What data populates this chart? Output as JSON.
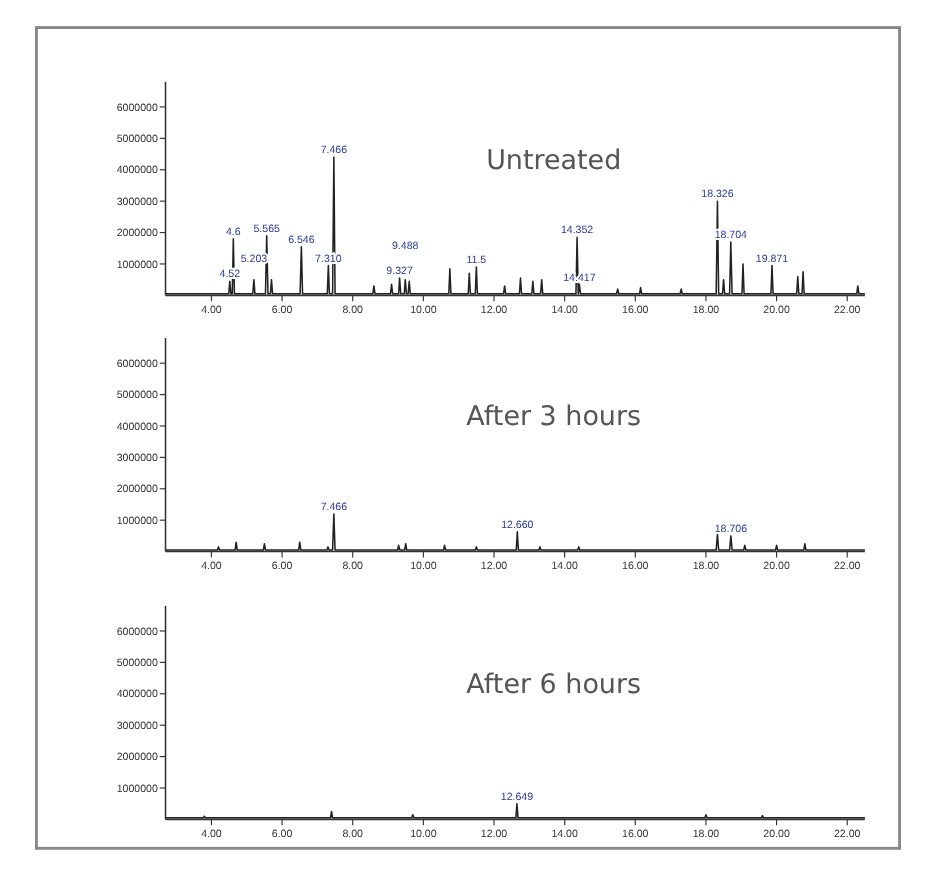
{
  "chart_data": [
    {
      "type": "line",
      "title": "Untreated",
      "xlim": [
        2.7,
        22.5
      ],
      "ylim": [
        0,
        6800000
      ],
      "xticks": [
        {
          "value": 4,
          "label": "4.00"
        },
        {
          "value": 6,
          "label": "6.00"
        },
        {
          "value": 8,
          "label": "8.00"
        },
        {
          "value": 10,
          "label": "10.00"
        },
        {
          "value": 12,
          "label": "12.00"
        },
        {
          "value": 14,
          "label": "14.00"
        },
        {
          "value": 16,
          "label": "16.00"
        },
        {
          "value": 18,
          "label": "18.00"
        },
        {
          "value": 20,
          "label": "20.00"
        },
        {
          "value": 22,
          "label": "22.00"
        }
      ],
      "yticks": [
        1000000,
        2000000,
        3000000,
        4000000,
        5000000,
        6000000
      ],
      "series": [
        {
          "color": "#222222",
          "x": [
            2.7,
            4.49,
            4.52,
            4.55,
            4.59,
            4.62,
            4.65,
            5.17,
            5.203,
            5.23,
            5.53,
            5.565,
            5.6,
            5.67,
            5.7,
            5.73,
            6.51,
            6.546,
            6.58,
            7.28,
            7.31,
            7.34,
            7.43,
            7.466,
            7.5,
            8.57,
            8.6,
            8.63,
            9.07,
            9.1,
            9.13,
            9.3,
            9.327,
            9.36,
            9.46,
            9.488,
            9.52,
            9.57,
            9.6,
            9.63,
            10.72,
            10.75,
            10.78,
            11.27,
            11.3,
            11.33,
            11.47,
            11.5,
            11.53,
            12.27,
            12.3,
            12.33,
            12.72,
            12.75,
            12.78,
            13.07,
            13.1,
            13.13,
            13.32,
            13.35,
            13.38,
            14.32,
            14.352,
            14.385,
            14.417,
            14.45,
            15.47,
            15.5,
            15.53,
            16.12,
            16.15,
            16.18,
            17.27,
            17.3,
            17.33,
            18.29,
            18.326,
            18.36,
            18.47,
            18.5,
            18.53,
            18.67,
            18.704,
            18.74,
            19.02,
            19.05,
            19.08,
            19.84,
            19.871,
            19.9,
            20.57,
            20.6,
            20.63,
            20.72,
            20.75,
            20.78,
            22.27,
            22.3,
            22.33,
            22.5
          ],
          "values": [
            50000,
            50000,
            450000,
            50000,
            50000,
            1800000,
            50000,
            50000,
            500000,
            50000,
            50000,
            1900000,
            50000,
            50000,
            500000,
            50000,
            50000,
            1550000,
            50000,
            50000,
            950000,
            50000,
            50000,
            4400000,
            50000,
            50000,
            300000,
            50000,
            50000,
            350000,
            50000,
            50000,
            550000,
            50000,
            50000,
            500000,
            50000,
            50000,
            450000,
            50000,
            50000,
            850000,
            50000,
            50000,
            700000,
            50000,
            50000,
            900000,
            50000,
            50000,
            300000,
            50000,
            50000,
            550000,
            50000,
            50000,
            450000,
            50000,
            50000,
            500000,
            50000,
            50000,
            1850000,
            50000,
            350000,
            50000,
            50000,
            200000,
            50000,
            50000,
            250000,
            50000,
            50000,
            200000,
            50000,
            50000,
            3000000,
            50000,
            50000,
            500000,
            50000,
            50000,
            1700000,
            50000,
            50000,
            1000000,
            50000,
            50000,
            950000,
            50000,
            50000,
            600000,
            50000,
            50000,
            750000,
            50000,
            50000,
            300000,
            50000,
            50000
          ]
        }
      ],
      "annotations": [
        {
          "text": "4.52",
          "x": 4.52,
          "y": 450000
        },
        {
          "text": "4.6",
          "x": 4.62,
          "y": 1800000
        },
        {
          "text": "5.203",
          "x": 5.203,
          "y": 500000
        },
        {
          "text": "5.565",
          "x": 5.565,
          "y": 1900000
        },
        {
          "text": "6.546",
          "x": 6.546,
          "y": 1550000
        },
        {
          "text": "7.310",
          "x": 7.31,
          "y": 950000
        },
        {
          "text": "7.466",
          "x": 7.466,
          "y": 4400000
        },
        {
          "text": "9.327",
          "x": 9.327,
          "y": 550000
        },
        {
          "text": "9.488",
          "x": 9.488,
          "y": 500000
        },
        {
          "text": "11.5",
          "x": 11.5,
          "y": 900000
        },
        {
          "text": "14.352",
          "x": 14.352,
          "y": 1850000
        },
        {
          "text": "14.417",
          "x": 14.417,
          "y": 350000
        },
        {
          "text": "18.326",
          "x": 18.326,
          "y": 3000000
        },
        {
          "text": "18.704",
          "x": 18.704,
          "y": 1700000
        },
        {
          "text": "19.871",
          "x": 19.871,
          "y": 950000
        }
      ]
    },
    {
      "type": "line",
      "title": "After 3 hours",
      "xlim": [
        2.7,
        22.5
      ],
      "ylim": [
        0,
        6800000
      ],
      "xticks": [
        {
          "value": 4,
          "label": "4.00"
        },
        {
          "value": 6,
          "label": "6.00"
        },
        {
          "value": 8,
          "label": "8.00"
        },
        {
          "value": 10,
          "label": "10.00"
        },
        {
          "value": 12,
          "label": "12.00"
        },
        {
          "value": 14,
          "label": "14.00"
        },
        {
          "value": 16,
          "label": "16.00"
        },
        {
          "value": 18,
          "label": "18.00"
        },
        {
          "value": 20,
          "label": "20.00"
        },
        {
          "value": 22,
          "label": "22.00"
        }
      ],
      "yticks": [
        1000000,
        2000000,
        3000000,
        4000000,
        5000000,
        6000000
      ],
      "series": [
        {
          "color": "#222222",
          "x": [
            2.7,
            4.17,
            4.2,
            4.23,
            4.67,
            4.7,
            4.73,
            5.47,
            5.5,
            5.53,
            6.47,
            6.5,
            6.53,
            7.27,
            7.3,
            7.33,
            7.43,
            7.466,
            7.5,
            9.27,
            9.3,
            9.33,
            9.47,
            9.5,
            9.53,
            10.57,
            10.6,
            10.63,
            11.47,
            11.5,
            11.53,
            12.63,
            12.66,
            12.69,
            13.27,
            13.3,
            13.33,
            14.37,
            14.4,
            14.43,
            18.29,
            18.326,
            18.36,
            18.67,
            18.706,
            18.74,
            19.07,
            19.1,
            19.13,
            19.97,
            20.0,
            20.03,
            20.77,
            20.8,
            20.83,
            22.5
          ],
          "values": [
            50000,
            50000,
            150000,
            50000,
            50000,
            300000,
            50000,
            50000,
            250000,
            50000,
            50000,
            300000,
            50000,
            50000,
            150000,
            50000,
            50000,
            1200000,
            50000,
            50000,
            200000,
            50000,
            50000,
            250000,
            50000,
            50000,
            200000,
            50000,
            50000,
            150000,
            50000,
            50000,
            630000,
            50000,
            50000,
            150000,
            50000,
            50000,
            150000,
            50000,
            50000,
            560000,
            50000,
            50000,
            500000,
            50000,
            50000,
            200000,
            50000,
            50000,
            200000,
            50000,
            50000,
            250000,
            50000,
            50000
          ]
        }
      ],
      "annotations": [
        {
          "text": "7.466",
          "x": 7.466,
          "y": 1200000
        },
        {
          "text": "12.660",
          "x": 12.66,
          "y": 630000
        },
        {
          "text": "18.706",
          "x": 18.706,
          "y": 500000
        }
      ]
    },
    {
      "type": "line",
      "title": "After 6 hours",
      "xlim": [
        2.7,
        22.5
      ],
      "ylim": [
        0,
        6800000
      ],
      "xticks": [
        {
          "value": 4,
          "label": "4.00"
        },
        {
          "value": 6,
          "label": "6.00"
        },
        {
          "value": 8,
          "label": "8.00"
        },
        {
          "value": 10,
          "label": "10.00"
        },
        {
          "value": 12,
          "label": "12.00"
        },
        {
          "value": 14,
          "label": "14.00"
        },
        {
          "value": 16,
          "label": "16.00"
        },
        {
          "value": 18,
          "label": "18.00"
        },
        {
          "value": 20,
          "label": "20.00"
        },
        {
          "value": 22,
          "label": "22.00"
        }
      ],
      "yticks": [
        1000000,
        2000000,
        3000000,
        4000000,
        5000000,
        6000000
      ],
      "series": [
        {
          "color": "#222222",
          "x": [
            2.7,
            3.77,
            3.8,
            3.83,
            7.37,
            7.4,
            7.43,
            9.67,
            9.7,
            9.73,
            12.62,
            12.649,
            12.68,
            17.97,
            18.0,
            18.03,
            19.57,
            19.6,
            19.63,
            22.5
          ],
          "values": [
            50000,
            50000,
            100000,
            50000,
            50000,
            250000,
            50000,
            50000,
            150000,
            50000,
            50000,
            500000,
            50000,
            50000,
            150000,
            50000,
            50000,
            120000,
            50000,
            50000
          ]
        }
      ],
      "annotations": [
        {
          "text": "12.649",
          "x": 12.649,
          "y": 500000
        }
      ]
    }
  ]
}
